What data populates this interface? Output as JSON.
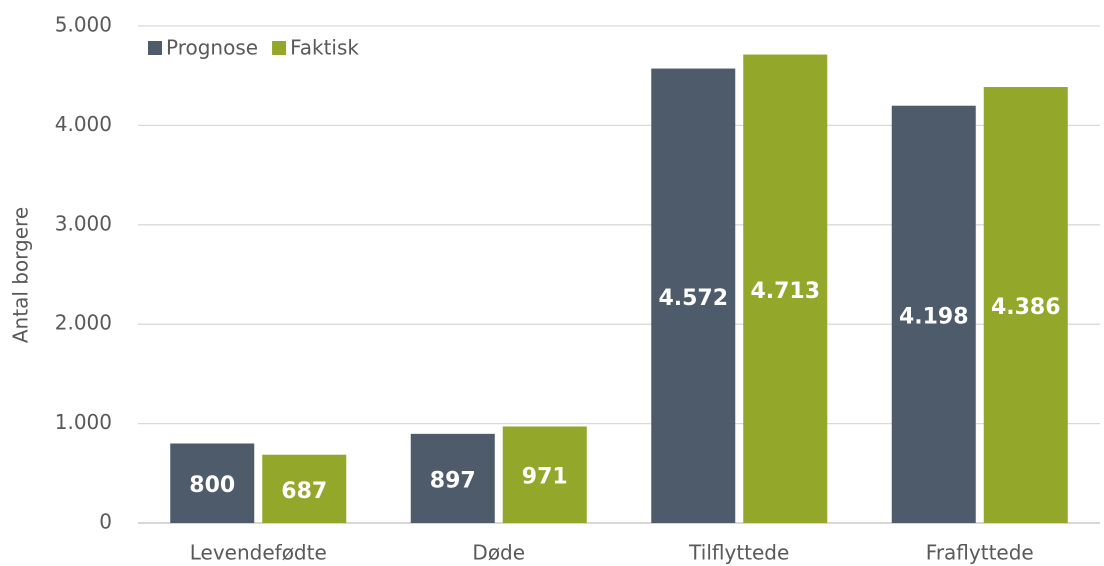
{
  "chart_data": {
    "type": "bar",
    "y_label": "Antal borgere",
    "categories": [
      "Levendefødte",
      "Døde",
      "Tilflyttede",
      "Fraflyttede"
    ],
    "series": [
      {
        "name": "Prognose",
        "color": "#4e5b6a",
        "values": [
          800,
          897,
          4572,
          4198
        ],
        "value_labels": [
          "800",
          "897",
          "4.572",
          "4.198"
        ]
      },
      {
        "name": "Faktisk",
        "color": "#93a82a",
        "values": [
          687,
          971,
          4713,
          4386
        ],
        "value_labels": [
          "687",
          "971",
          "4.713",
          "4.386"
        ]
      }
    ],
    "ylim": [
      0,
      5000
    ],
    "yticks": [
      0,
      {
        "value": 1000,
        "label": "1.000"
      },
      {
        "value": 2000,
        "label": "2.000"
      },
      {
        "value": 3000,
        "label": "3.000"
      },
      {
        "value": 4000,
        "label": "4.000"
      },
      {
        "value": 5000,
        "label": "5.000"
      }
    ],
    "grid": true,
    "legend": "top-left"
  }
}
